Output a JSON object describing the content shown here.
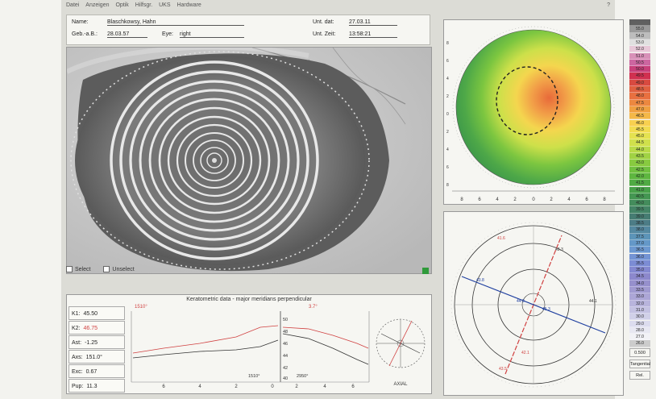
{
  "menu": {
    "items": [
      "Datei",
      "Anzeigen",
      "Optik",
      "Hilfsgr.",
      "UKS",
      "Hardware"
    ],
    "right": "?"
  },
  "patient": {
    "name_label": "Name:",
    "name_value": "Blaschkowsy, Hahn",
    "dob_label": "Geb.-a.B.:",
    "dob_value": "28.03.57",
    "eye_label": "Eye:",
    "eye_value": "right",
    "date_label": "Unt. dat:",
    "date_value": "27.03.11",
    "time_label": "Unt. Zeit:",
    "time_value": "13:58:21"
  },
  "eye_options": {
    "option1": "Select",
    "option2": "Unselect"
  },
  "graph": {
    "title": "Keratometric data - major meridians perpendicular",
    "angle_left": "1510°",
    "angle_right": "3.7°",
    "bottom_left_angle": "1510°",
    "bottom_mid_angle": "2950°",
    "ticks_left": [
      "6",
      "4",
      "2",
      "0"
    ],
    "ticks_right": [
      "2",
      "4",
      "6"
    ],
    "yticks": [
      "50",
      "48",
      "46",
      "44",
      "42",
      "40"
    ],
    "axis_label": "AXIAL"
  },
  "keratometry": [
    {
      "label": "K1:",
      "value": "45.50",
      "color": "#222"
    },
    {
      "label": "K2:",
      "value": "46.75",
      "color": "#d04040"
    },
    {
      "label": "Ast:",
      "value": "-1.25",
      "color": "#222"
    },
    {
      "label": "Axs:",
      "value": "151.0°",
      "color": "#222"
    },
    {
      "label": "Exc:",
      "value": "0.67",
      "color": "#222"
    },
    {
      "label": "Pup:",
      "value": "11.3",
      "color": "#222"
    }
  ],
  "topo_axis": {
    "x_ticks": [
      "8",
      "6",
      "4",
      "2",
      "0",
      "2",
      "4",
      "6",
      "8"
    ],
    "y_ticks": [
      "8",
      "6",
      "4",
      "2",
      "0",
      "2",
      "4",
      "6",
      "8"
    ]
  },
  "polar": {
    "labels": [
      "41.6",
      "42.3",
      "43.8",
      "44.1",
      "44.9",
      "45.3",
      "42.1",
      "43.5"
    ]
  },
  "scale": {
    "values": [
      "",
      "55.0",
      "54.0",
      "53.0",
      "52.0",
      "51.0",
      "50.5",
      "50.0",
      "49.5",
      "49.0",
      "48.5",
      "48.0",
      "47.5",
      "47.0",
      "46.5",
      "46.0",
      "45.5",
      "45.0",
      "44.5",
      "44.0",
      "43.5",
      "43.0",
      "42.5",
      "42.0",
      "41.5",
      "41.0",
      "40.5",
      "40.0",
      "39.5",
      "39.0",
      "38.5",
      "38.0",
      "37.5",
      "37.0",
      "36.5",
      "36.0",
      "35.5",
      "35.0",
      "34.5",
      "34.0",
      "33.5",
      "33.0",
      "32.0",
      "31.0",
      "30.0",
      "29.0",
      "28.0",
      "27.0",
      "26.0"
    ],
    "colors": [
      "#606060",
      "#9a9a9a",
      "#bdbdbd",
      "#e0e0e0",
      "#e8c8d8",
      "#d890b8",
      "#cc66a0",
      "#c8407a",
      "#d03050",
      "#d84a40",
      "#e06040",
      "#e87040",
      "#ec8840",
      "#f0a040",
      "#f4b848",
      "#f8d050",
      "#f2dc50",
      "#e4e250",
      "#d0e04c",
      "#b8da48",
      "#a0d244",
      "#88ca40",
      "#70c040",
      "#5eb640",
      "#50aa44",
      "#48a04a",
      "#449652",
      "#448c5c",
      "#448466",
      "#467c72",
      "#4c7c86",
      "#5488a0",
      "#5c94b8",
      "#6498c8",
      "#6c98d0",
      "#7494d4",
      "#7c8cd4",
      "#8488d0",
      "#8c88cc",
      "#9690cc",
      "#a09ad0",
      "#aca6d6",
      "#b8b4dc",
      "#c4c2e2",
      "#d0d0e8",
      "#dcdcee",
      "#e8e8f2",
      "#f2f2f6"
    ],
    "buttons": [
      "0.500",
      "Tangential",
      "Rel."
    ]
  }
}
